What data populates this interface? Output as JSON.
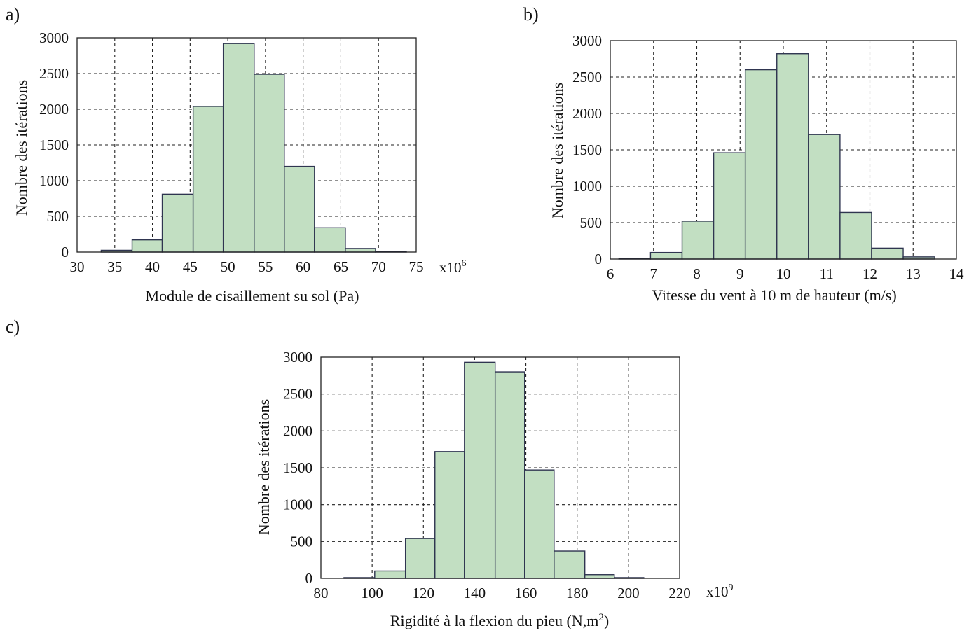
{
  "figure": {
    "bar_color": "#c2dfc2",
    "edge_color": "#2f3550",
    "panels": [
      "a)",
      "b)",
      "c)"
    ]
  },
  "chart_data": [
    {
      "type": "bar",
      "panel": "a)",
      "title": "",
      "xlabel": "Module de cisaillement su sol (Pa)",
      "ylabel": "Nombre des itérations",
      "x_multiplier": "x10",
      "x_multiplier_exp": "6",
      "xlim": [
        30,
        75
      ],
      "ylim": [
        0,
        3000
      ],
      "xticks": [
        30,
        35,
        40,
        45,
        50,
        55,
        60,
        65,
        70,
        75
      ],
      "yticks": [
        0,
        500,
        1000,
        1500,
        2000,
        2500,
        3000
      ],
      "grid": true,
      "bins": [
        {
          "x0": 33.2,
          "x1": 37.3,
          "count": 25
        },
        {
          "x0": 37.3,
          "x1": 41.3,
          "count": 170
        },
        {
          "x0": 41.3,
          "x1": 45.4,
          "count": 810
        },
        {
          "x0": 45.4,
          "x1": 49.4,
          "count": 2040
        },
        {
          "x0": 49.4,
          "x1": 53.5,
          "count": 2920
        },
        {
          "x0": 53.5,
          "x1": 57.5,
          "count": 2490
        },
        {
          "x0": 57.5,
          "x1": 61.5,
          "count": 1200
        },
        {
          "x0": 61.5,
          "x1": 65.6,
          "count": 340
        },
        {
          "x0": 65.6,
          "x1": 69.6,
          "count": 50
        },
        {
          "x0": 69.6,
          "x1": 73.7,
          "count": 10
        }
      ]
    },
    {
      "type": "bar",
      "panel": "b)",
      "title": "",
      "xlabel": "Vitesse du vent à 10 m de hauteur (m/s)",
      "ylabel": "Nombre des itérations",
      "x_multiplier": "",
      "x_multiplier_exp": "",
      "xlim": [
        6,
        14
      ],
      "ylim": [
        0,
        3000
      ],
      "xticks": [
        6,
        7,
        8,
        9,
        10,
        11,
        12,
        13,
        14
      ],
      "yticks": [
        0,
        500,
        1000,
        1500,
        2000,
        2500,
        3000
      ],
      "grid": true,
      "bins": [
        {
          "x0": 6.2,
          "x1": 6.93,
          "count": 10
        },
        {
          "x0": 6.93,
          "x1": 7.66,
          "count": 90
        },
        {
          "x0": 7.66,
          "x1": 8.39,
          "count": 520
        },
        {
          "x0": 8.39,
          "x1": 9.12,
          "count": 1460
        },
        {
          "x0": 9.12,
          "x1": 9.85,
          "count": 2600
        },
        {
          "x0": 9.85,
          "x1": 10.58,
          "count": 2820
        },
        {
          "x0": 10.58,
          "x1": 11.31,
          "count": 1710
        },
        {
          "x0": 11.31,
          "x1": 12.04,
          "count": 640
        },
        {
          "x0": 12.04,
          "x1": 12.77,
          "count": 150
        },
        {
          "x0": 12.77,
          "x1": 13.5,
          "count": 30
        }
      ]
    },
    {
      "type": "bar",
      "panel": "c)",
      "title": "",
      "xlabel": "Rigidité à la flexion du pieu (N,m",
      "xlabel_sup": "2",
      "xlabel_end": ")",
      "ylabel": "Nombre des itérations",
      "x_multiplier": "x10",
      "x_multiplier_exp": "9",
      "xlim": [
        80,
        220
      ],
      "ylim": [
        0,
        3000
      ],
      "xticks": [
        80,
        100,
        120,
        140,
        160,
        180,
        200,
        220
      ],
      "yticks": [
        0,
        500,
        1000,
        1500,
        2000,
        2500,
        3000
      ],
      "grid": true,
      "bins": [
        {
          "x0": 89,
          "x1": 101,
          "count": 10
        },
        {
          "x0": 101,
          "x1": 113,
          "count": 100
        },
        {
          "x0": 113,
          "x1": 124.5,
          "count": 540
        },
        {
          "x0": 124.5,
          "x1": 136,
          "count": 1720
        },
        {
          "x0": 136,
          "x1": 148,
          "count": 2930
        },
        {
          "x0": 148,
          "x1": 159.5,
          "count": 2800
        },
        {
          "x0": 159.5,
          "x1": 171,
          "count": 1470
        },
        {
          "x0": 171,
          "x1": 183,
          "count": 370
        },
        {
          "x0": 183,
          "x1": 194.5,
          "count": 50
        },
        {
          "x0": 194.5,
          "x1": 206,
          "count": 10
        }
      ]
    }
  ]
}
